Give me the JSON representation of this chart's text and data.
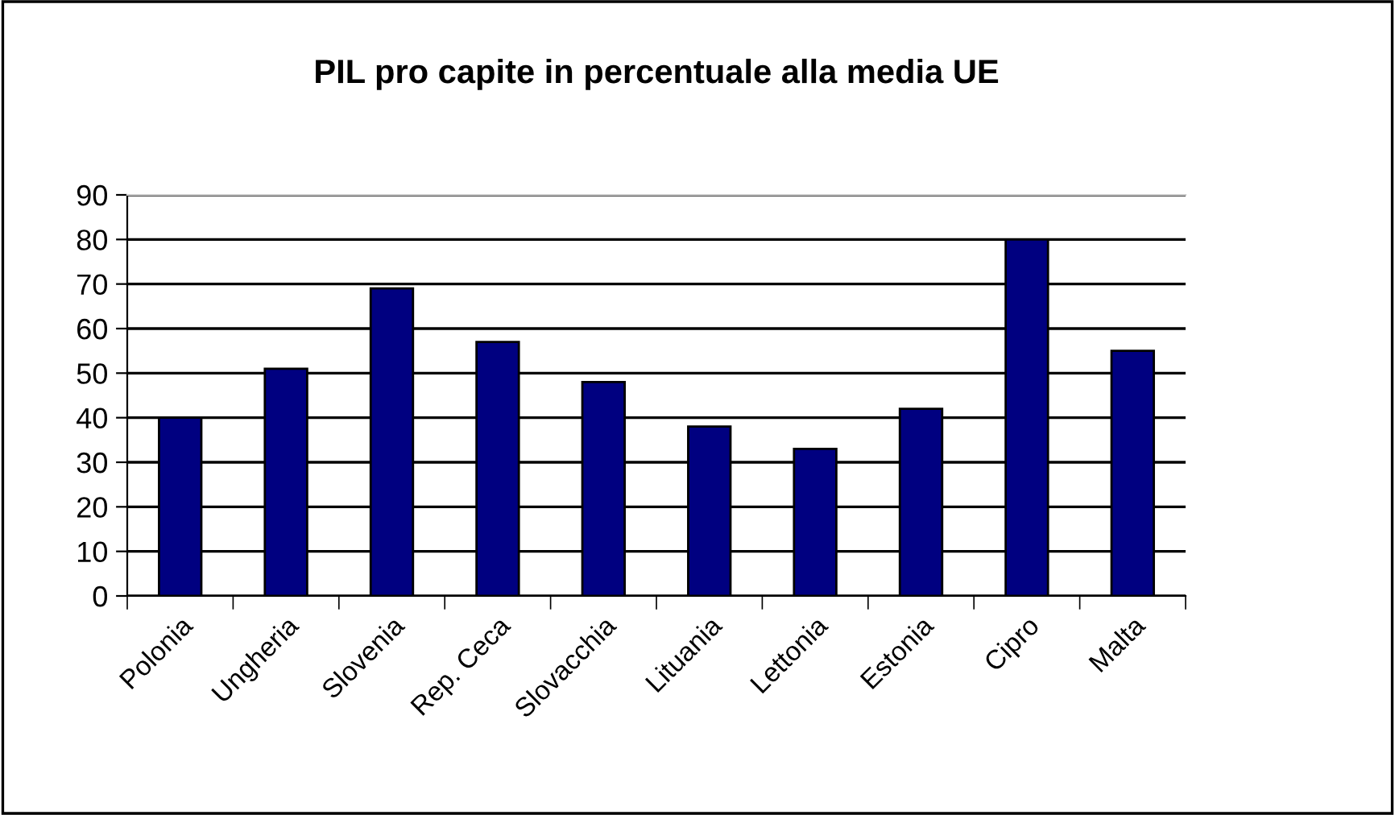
{
  "chart_data": {
    "type": "bar",
    "title": "PIL pro capite in percentuale alla media UE",
    "categories": [
      "Polonia",
      "Ungheria",
      "Slovenia",
      "Rep. Ceca",
      "Slovacchia",
      "Lituania",
      "Lettonia",
      "Estonia",
      "Cipro",
      "Malta"
    ],
    "values": [
      40,
      51,
      69,
      57,
      48,
      38,
      33,
      42,
      80,
      55
    ],
    "color": "#000080",
    "ylim": [
      0,
      90
    ],
    "yticks": [
      0,
      10,
      20,
      30,
      40,
      50,
      60,
      70,
      80,
      90
    ],
    "grid": "y",
    "legend": false
  }
}
